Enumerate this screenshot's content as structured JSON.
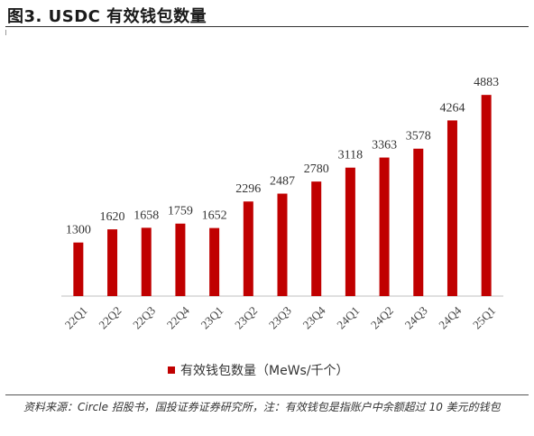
{
  "title": "图3. USDC 有效钱包数量",
  "legend_label": "有效钱包数量（MeWs/千个）",
  "source_text": "资料来源：Circle 招股书，国投证券证券研究所，注：有效钱包是指账户中余额超过 10 美元的钱包",
  "chart_data": {
    "type": "bar",
    "categories": [
      "22Q1",
      "22Q2",
      "22Q3",
      "22Q4",
      "23Q1",
      "23Q2",
      "23Q3",
      "23Q4",
      "24Q1",
      "24Q2",
      "24Q3",
      "24Q4",
      "25Q1"
    ],
    "series": [
      {
        "name": "有效钱包数量（MeWs/千个）",
        "values": [
          1300,
          1620,
          1658,
          1759,
          1652,
          2296,
          2487,
          2780,
          3118,
          3363,
          3578,
          4264,
          4883
        ],
        "color": "#c00000"
      }
    ],
    "ylim": [
      0,
      5500
    ],
    "grid": false,
    "legend_position": "bottom"
  }
}
